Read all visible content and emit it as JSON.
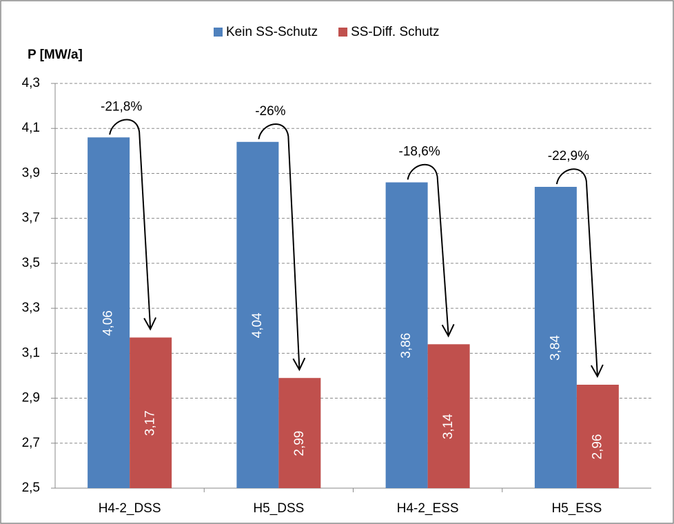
{
  "chart_data": {
    "type": "bar",
    "y_label": "P [MW/a]",
    "categories": [
      "H4-2_DSS",
      "H5_DSS",
      "H4-2_ESS",
      "H5_ESS"
    ],
    "series": [
      {
        "name": "Kein SS-Schutz",
        "color": "#4f81bd",
        "values": [
          4.06,
          4.04,
          3.86,
          3.84
        ],
        "value_labels": [
          "4,06",
          "4,04",
          "3,86",
          "3,84"
        ]
      },
      {
        "name": "SS-Diff. Schutz",
        "color": "#c0504d",
        "values": [
          3.17,
          2.99,
          3.14,
          2.96
        ],
        "value_labels": [
          "3,17",
          "2,99",
          "3,14",
          "2,96"
        ]
      }
    ],
    "annotations": [
      "-21,8%",
      "-26%",
      "-18,6%",
      "-22,9%"
    ],
    "ylim": [
      2.5,
      4.3
    ],
    "yticks": [
      {
        "value": 2.5,
        "label": "2,5"
      },
      {
        "value": 2.7,
        "label": "2,7"
      },
      {
        "value": 2.9,
        "label": "2,9"
      },
      {
        "value": 3.1,
        "label": "3,1"
      },
      {
        "value": 3.3,
        "label": "3,3"
      },
      {
        "value": 3.5,
        "label": "3,5"
      },
      {
        "value": 3.7,
        "label": "3,7"
      },
      {
        "value": 3.9,
        "label": "3,9"
      },
      {
        "value": 4.1,
        "label": "4,1"
      },
      {
        "value": 4.3,
        "label": "4,3"
      }
    ],
    "grid": true,
    "legend": "top"
  }
}
